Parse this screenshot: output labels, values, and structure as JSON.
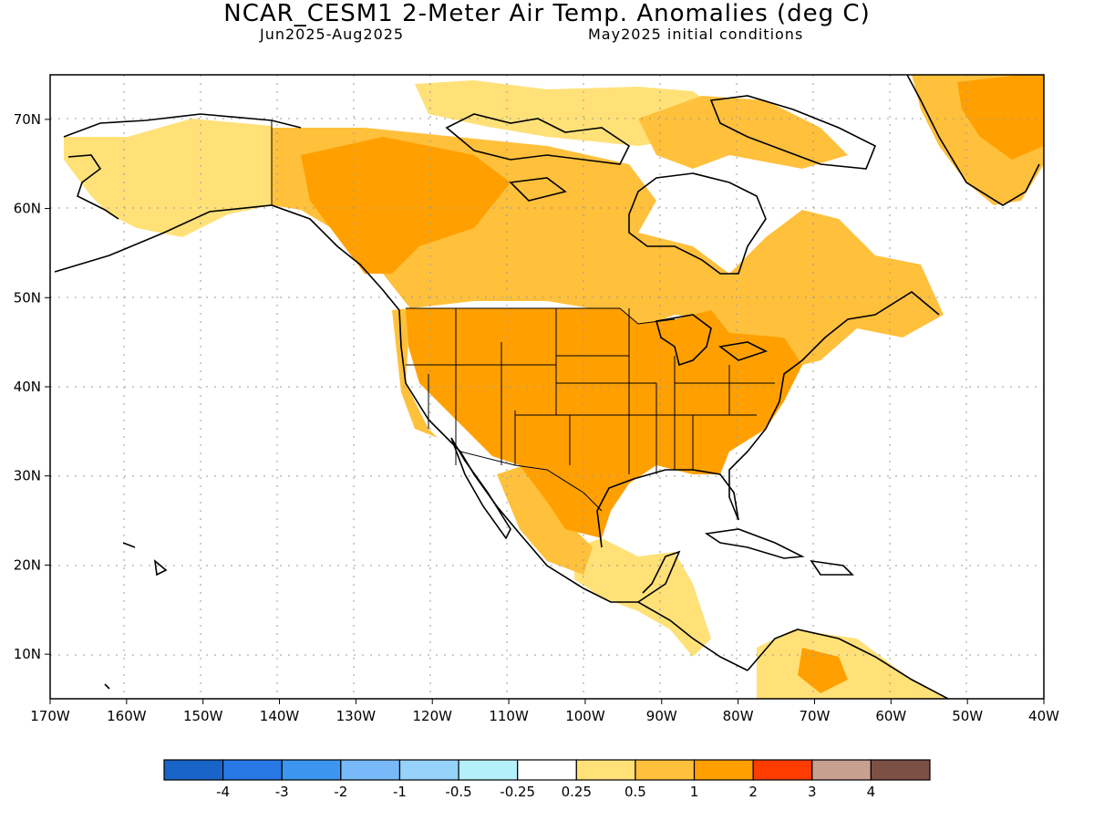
{
  "title": "NCAR_CESM1 2-Meter Air Temp. Anomalies (deg C)",
  "period": "Jun2025-Aug2025",
  "init": "May2025 initial conditions",
  "map": {
    "lon_range": [
      -170,
      -40
    ],
    "lat_range": [
      5,
      75
    ],
    "lon_ticks": [
      "170W",
      "160W",
      "150W",
      "140W",
      "130W",
      "120W",
      "110W",
      "100W",
      "90W",
      "80W",
      "70W",
      "60W",
      "50W",
      "40W"
    ],
    "lat_ticks": [
      "10N",
      "20N",
      "30N",
      "40N",
      "50N",
      "60N",
      "70N"
    ],
    "grid": "dotted"
  },
  "legend": {
    "colors": [
      "#1964c8",
      "#2878e6",
      "#3c96f0",
      "#78b9fa",
      "#96d2fa",
      "#b4f0fa",
      "#ffffff",
      "#ffe178",
      "#ffc03c",
      "#ffa000",
      "#ff3c00",
      "#c8a090",
      "#7d5046"
    ],
    "labels": [
      "-4",
      "-3",
      "-2",
      "-1",
      "-0.5",
      "-0.25",
      "0.25",
      "0.5",
      "1",
      "2",
      "3",
      "4"
    ]
  }
}
